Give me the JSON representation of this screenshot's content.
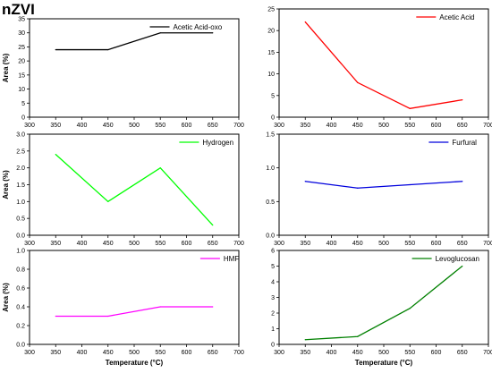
{
  "figure": {
    "title": "nZVI"
  },
  "chart_data": [
    {
      "type": "line",
      "series": [
        {
          "name": "Acetic Acid-oxo",
          "color": "#000000",
          "x": [
            350,
            450,
            550,
            650
          ],
          "y": [
            24,
            24,
            30,
            30
          ]
        }
      ],
      "xlim": [
        300,
        700
      ],
      "xticks": [
        300,
        350,
        400,
        450,
        500,
        550,
        600,
        650,
        700
      ],
      "ylim": [
        0,
        35
      ],
      "yticks": [
        0,
        5,
        10,
        15,
        20,
        25,
        30,
        35
      ],
      "yticklabels": [
        "0",
        "5",
        "10",
        "15",
        "20",
        "25",
        "30",
        "35"
      ],
      "xlabel": "",
      "ylabel": "Area (%)",
      "legend_position": "top-right",
      "grid": false
    },
    {
      "type": "line",
      "series": [
        {
          "name": "Acetic Acid",
          "color": "#ff0000",
          "x": [
            350,
            450,
            550,
            650
          ],
          "y": [
            22,
            8,
            2,
            4
          ]
        }
      ],
      "xlim": [
        300,
        700
      ],
      "xticks": [
        300,
        350,
        400,
        450,
        500,
        550,
        600,
        650,
        700
      ],
      "ylim": [
        0,
        25
      ],
      "yticks": [
        0,
        5,
        10,
        15,
        20,
        25
      ],
      "yticklabels": [
        "0",
        "5",
        "10",
        "15",
        "20",
        "25"
      ],
      "xlabel": "",
      "ylabel": "",
      "legend_position": "top-right",
      "grid": false
    },
    {
      "type": "line",
      "series": [
        {
          "name": "Hydrogen",
          "color": "#00ff00",
          "x": [
            350,
            450,
            550,
            650
          ],
          "y": [
            2.4,
            1.0,
            2.0,
            0.3
          ]
        }
      ],
      "xlim": [
        300,
        700
      ],
      "xticks": [
        300,
        350,
        400,
        450,
        500,
        550,
        600,
        650,
        700
      ],
      "ylim": [
        0,
        3.0
      ],
      "yticks": [
        0,
        0.5,
        1.0,
        1.5,
        2.0,
        2.5,
        3.0
      ],
      "yticklabels": [
        "0.0",
        "0.5",
        "1.0",
        "1.5",
        "2.0",
        "2.5",
        "3.0"
      ],
      "xlabel": "",
      "ylabel": "Area (%)",
      "legend_position": "top-right",
      "grid": false
    },
    {
      "type": "line",
      "series": [
        {
          "name": "Furfural",
          "color": "#0000dd",
          "x": [
            350,
            450,
            550,
            650
          ],
          "y": [
            0.8,
            0.7,
            0.75,
            0.8
          ]
        }
      ],
      "xlim": [
        300,
        700
      ],
      "xticks": [
        300,
        350,
        400,
        450,
        500,
        550,
        600,
        650,
        700
      ],
      "ylim": [
        0,
        1.5
      ],
      "yticks": [
        0,
        0.5,
        1.0,
        1.5
      ],
      "yticklabels": [
        "0.0",
        "0.5",
        "1.0",
        "1.5"
      ],
      "xlabel": "",
      "ylabel": "",
      "legend_position": "top-right",
      "grid": false
    },
    {
      "type": "line",
      "series": [
        {
          "name": "HMF",
          "color": "#ff00ff",
          "x": [
            350,
            450,
            550,
            650
          ],
          "y": [
            0.3,
            0.3,
            0.4,
            0.4
          ]
        }
      ],
      "xlim": [
        300,
        700
      ],
      "xticks": [
        300,
        350,
        400,
        450,
        500,
        550,
        600,
        650,
        700
      ],
      "ylim": [
        0,
        1.0
      ],
      "yticks": [
        0,
        0.2,
        0.4,
        0.6,
        0.8,
        1.0
      ],
      "yticklabels": [
        "0.0",
        "0.2",
        "0.4",
        "0.6",
        "0.8",
        "1.0"
      ],
      "xlabel": "Temperature (°C)",
      "ylabel": "Area (%)",
      "legend_position": "top-right",
      "grid": false
    },
    {
      "type": "line",
      "series": [
        {
          "name": "Levoglucosan",
          "color": "#008000",
          "x": [
            350,
            450,
            550,
            650
          ],
          "y": [
            0.3,
            0.5,
            2.3,
            5.0
          ]
        }
      ],
      "xlim": [
        300,
        700
      ],
      "xticks": [
        300,
        350,
        400,
        450,
        500,
        550,
        600,
        650,
        700
      ],
      "ylim": [
        0,
        6
      ],
      "yticks": [
        0,
        1,
        2,
        3,
        4,
        5,
        6
      ],
      "yticklabels": [
        "0",
        "1",
        "2",
        "3",
        "4",
        "5",
        "6"
      ],
      "xlabel": "Temperature (°C)",
      "ylabel": "",
      "legend_position": "top-right",
      "grid": false
    }
  ]
}
